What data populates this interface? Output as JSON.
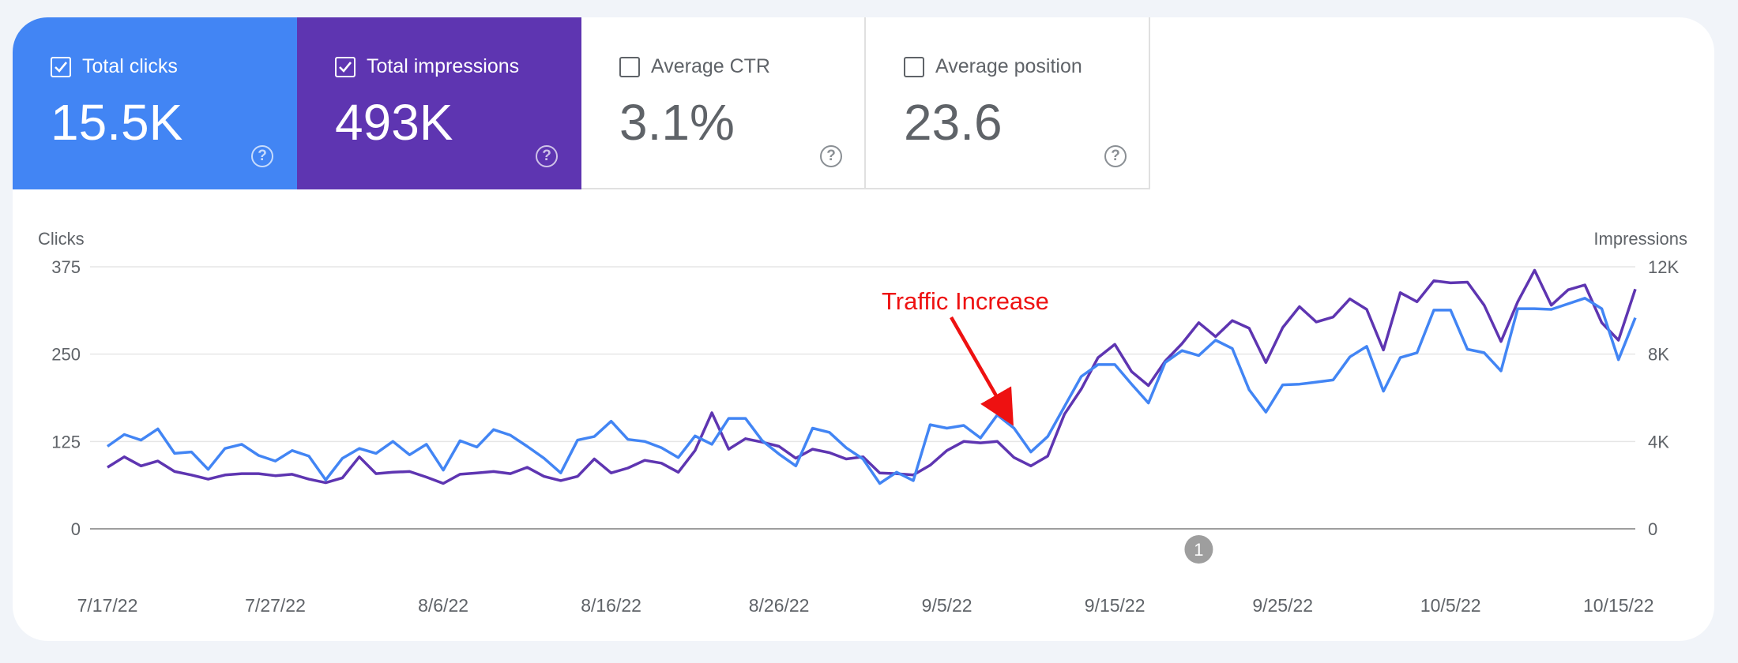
{
  "metrics": [
    {
      "id": "clicks",
      "label": "Total clicks",
      "value": "15.5K",
      "checked": true,
      "color": "#4285f4"
    },
    {
      "id": "impressions",
      "label": "Total impressions",
      "value": "493K",
      "checked": true,
      "color": "#5e35b1"
    },
    {
      "id": "ctr",
      "label": "Average CTR",
      "value": "3.1%",
      "checked": false,
      "color": "#ffffff"
    },
    {
      "id": "position",
      "label": "Average position",
      "value": "23.6",
      "checked": false,
      "color": "#ffffff"
    }
  ],
  "chart_data": {
    "type": "line",
    "left_axis_title": "Clicks",
    "right_axis_title": "Impressions",
    "left_ticks": [
      "375",
      "250",
      "125",
      "0"
    ],
    "right_ticks": [
      "12K",
      "8K",
      "4K",
      "0"
    ],
    "left_ylim": [
      0,
      375
    ],
    "right_ylim": [
      0,
      12000
    ],
    "x_tick_labels": [
      "7/17/22",
      "7/27/22",
      "8/6/22",
      "8/16/22",
      "8/26/22",
      "9/5/22",
      "9/15/22",
      "9/25/22",
      "10/5/22",
      "10/15/22"
    ],
    "x_range": [
      "7/17/22",
      "10/16/22"
    ],
    "annotation_marker": "1",
    "annotation_marker_date": "9/20/22",
    "annotation": {
      "text": "Traffic Increase",
      "color": "#ee1111",
      "points_to": "9/10/22"
    },
    "series": [
      {
        "name": "Total clicks",
        "axis": "left",
        "color": "#4285f4",
        "values": [
          118,
          135,
          127,
          143,
          108,
          110,
          85,
          115,
          121,
          105,
          97,
          112,
          104,
          70,
          101,
          115,
          108,
          125,
          106,
          121,
          84,
          126,
          117,
          142,
          134,
          118,
          101,
          80,
          127,
          132,
          154,
          128,
          125,
          116,
          102,
          133,
          121,
          158,
          158,
          126,
          107,
          90,
          144,
          138,
          116,
          100,
          65,
          81,
          69,
          149,
          144,
          148,
          130,
          163,
          144,
          110,
          132,
          175,
          218,
          235,
          235,
          207,
          180,
          238,
          255,
          248,
          270,
          258,
          199,
          167,
          206,
          207,
          210,
          213,
          246,
          261,
          197,
          245,
          252,
          313,
          313,
          257,
          252,
          226,
          315,
          315,
          314,
          322,
          330,
          315,
          242,
          302
        ]
      },
      {
        "name": "Total impressions",
        "axis": "left",
        "color": "#5e35b1",
        "values": [
          88,
          103,
          90,
          97,
          82,
          77,
          71,
          77,
          79,
          79,
          76,
          78,
          71,
          66,
          73,
          103,
          79,
          81,
          82,
          74,
          65,
          78,
          80,
          82,
          79,
          88,
          75,
          69,
          75,
          100,
          80,
          87,
          98,
          94,
          81,
          112,
          166,
          114,
          129,
          124,
          118,
          101,
          114,
          109,
          100,
          103,
          80,
          79,
          77,
          91,
          112,
          125,
          123,
          125,
          102,
          90,
          104,
          164,
          200,
          245,
          264,
          225,
          205,
          240,
          265,
          295,
          275,
          298,
          287,
          238,
          288,
          318,
          296,
          303,
          329,
          314,
          256,
          338,
          325,
          355,
          352,
          353,
          320,
          268,
          325,
          370,
          320,
          342,
          349,
          295,
          270,
          343
        ]
      }
    ]
  }
}
